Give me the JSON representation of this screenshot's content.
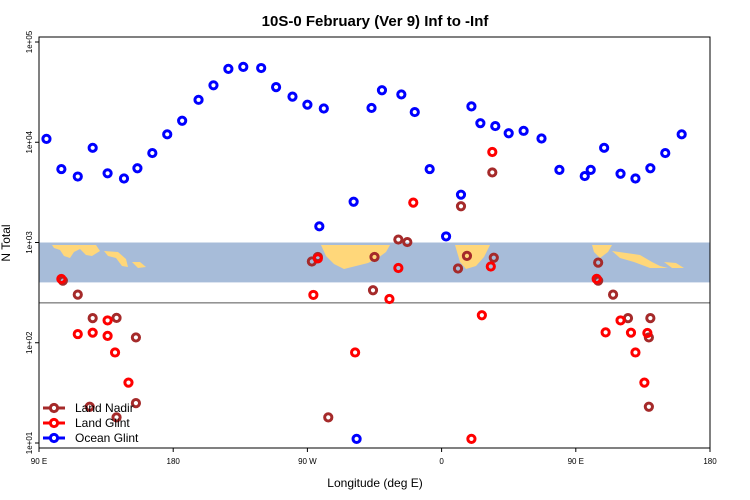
{
  "chart_data": {
    "type": "scatter",
    "title": "10S-0 February (Ver 9)   Inf to -Inf",
    "xlabel": "Longitude (deg E)",
    "ylabel": "N Total",
    "xlim": [
      90,
      540
    ],
    "ylim_log10": [
      0.95,
      5.05
    ],
    "x_ticks": [
      {
        "value": 90,
        "label": "90 E"
      },
      {
        "value": 180,
        "label": "180"
      },
      {
        "value": 270,
        "label": "90 W"
      },
      {
        "value": 360,
        "label": "0"
      },
      {
        "value": 450,
        "label": "90 E"
      },
      {
        "value": 540,
        "label": "180"
      }
    ],
    "y_ticks": [
      {
        "value": 10,
        "label": "1e+01"
      },
      {
        "value": 100,
        "label": "1e+02"
      },
      {
        "value": 1000,
        "label": "1e+03"
      },
      {
        "value": 10000,
        "label": "1e+04"
      },
      {
        "value": 100000,
        "label": "1e+05"
      }
    ],
    "reference_line_value": 250,
    "map_strip_range": [
      400,
      1000
    ],
    "legend_position": "bottom-left",
    "series": [
      {
        "name": "Land Nadir",
        "color": "#a52a2a",
        "points": [
          [
            106,
            416
          ],
          [
            116,
            302
          ],
          [
            126,
            176
          ],
          [
            124,
            23
          ],
          [
            142,
            177
          ],
          [
            142,
            18
          ],
          [
            155,
            113
          ],
          [
            155,
            25
          ],
          [
            273,
            646
          ],
          [
            277,
            717
          ],
          [
            284,
            18
          ],
          [
            314,
            334
          ],
          [
            315,
            717
          ],
          [
            331,
            1070
          ],
          [
            337,
            1010
          ],
          [
            371,
            550
          ],
          [
            373,
            2300
          ],
          [
            377,
            735
          ],
          [
            394,
            5000
          ],
          [
            395,
            705
          ],
          [
            465,
            416
          ],
          [
            465,
            630
          ],
          [
            475,
            302
          ],
          [
            485,
            176
          ],
          [
            499,
            113
          ],
          [
            499,
            23
          ],
          [
            500,
            176
          ]
        ]
      },
      {
        "name": "Land Glint",
        "color": "#ff0000",
        "points": [
          [
            105,
            433
          ],
          [
            116,
            122
          ],
          [
            126,
            126
          ],
          [
            136,
            167
          ],
          [
            136,
            117
          ],
          [
            141,
            80
          ],
          [
            150,
            40
          ],
          [
            274,
            300
          ],
          [
            277,
            695
          ],
          [
            302,
            80
          ],
          [
            325,
            273
          ],
          [
            331,
            557
          ],
          [
            341,
            2500
          ],
          [
            380,
            11
          ],
          [
            387,
            188
          ],
          [
            393,
            576
          ],
          [
            394,
            8000
          ],
          [
            464,
            434
          ],
          [
            470,
            127
          ],
          [
            480,
            167
          ],
          [
            487,
            126
          ],
          [
            490,
            80
          ],
          [
            496,
            40
          ],
          [
            498,
            125
          ]
        ]
      },
      {
        "name": "Ocean Glint",
        "color": "#0000ff",
        "points": [
          [
            95,
            10800
          ],
          [
            105,
            5400
          ],
          [
            116,
            4550
          ],
          [
            126,
            8800
          ],
          [
            136,
            4900
          ],
          [
            147,
            4350
          ],
          [
            156,
            5500
          ],
          [
            166,
            7800
          ],
          [
            176,
            12000
          ],
          [
            186,
            16400
          ],
          [
            197,
            26500
          ],
          [
            207,
            37000
          ],
          [
            217,
            54000
          ],
          [
            227,
            56500
          ],
          [
            239,
            55000
          ],
          [
            249,
            35500
          ],
          [
            260,
            28500
          ],
          [
            270,
            23700
          ],
          [
            281,
            21700
          ],
          [
            278,
            1450
          ],
          [
            301,
            2550
          ],
          [
            303,
            11
          ],
          [
            313,
            22000
          ],
          [
            320,
            33000
          ],
          [
            333,
            30000
          ],
          [
            342,
            20000
          ],
          [
            352,
            5400
          ],
          [
            363,
            1150
          ],
          [
            373,
            3000
          ],
          [
            380,
            22800
          ],
          [
            386,
            15500
          ],
          [
            396,
            14500
          ],
          [
            405,
            12300
          ],
          [
            415,
            13000
          ],
          [
            427,
            10900
          ],
          [
            439,
            5300
          ],
          [
            456,
            4600
          ],
          [
            460,
            5300
          ],
          [
            469,
            8800
          ],
          [
            480,
            4850
          ],
          [
            490,
            4350
          ],
          [
            500,
            5500
          ],
          [
            510,
            7800
          ],
          [
            521,
            12000
          ]
        ]
      }
    ]
  },
  "map_colors": {
    "ocean": "#a7bcd9",
    "land": "#ffd77a"
  }
}
